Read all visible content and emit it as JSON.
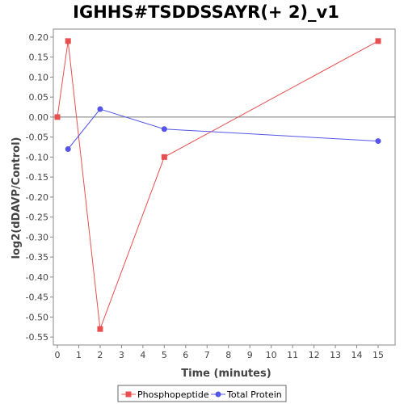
{
  "chart_data": {
    "type": "line",
    "title": "IGHHS#TSDDSSAYR(+ 2)_v1",
    "xlabel": "Time (minutes)",
    "ylabel": "log2(dDAVP/Control)",
    "xlim": [
      0,
      16
    ],
    "ylim": [
      -0.57,
      0.22
    ],
    "x_ticks": [
      0,
      1,
      2,
      3,
      4,
      5,
      6,
      7,
      8,
      9,
      10,
      11,
      12,
      13,
      14,
      15
    ],
    "y_ticks": [
      -0.55,
      -0.5,
      -0.45,
      -0.4,
      -0.35,
      -0.3,
      -0.25,
      -0.2,
      -0.15,
      -0.1,
      -0.05,
      0.0,
      0.05,
      0.1,
      0.15,
      0.2
    ],
    "zero_line": true,
    "grid": false,
    "legend_position": "bottom",
    "series": [
      {
        "name": "Phosphopeptide",
        "color": "#e85050",
        "marker": "square",
        "points": [
          [
            0,
            0.0
          ],
          [
            0.5,
            0.19
          ],
          [
            2,
            -0.53
          ],
          [
            5,
            -0.1
          ],
          [
            15,
            0.19
          ]
        ]
      },
      {
        "name": "Total Protein",
        "color": "#5555e8",
        "marker": "circle",
        "points": [
          [
            0.5,
            -0.08
          ],
          [
            2,
            0.02
          ],
          [
            5,
            -0.03
          ],
          [
            15,
            -0.06
          ]
        ]
      }
    ]
  }
}
